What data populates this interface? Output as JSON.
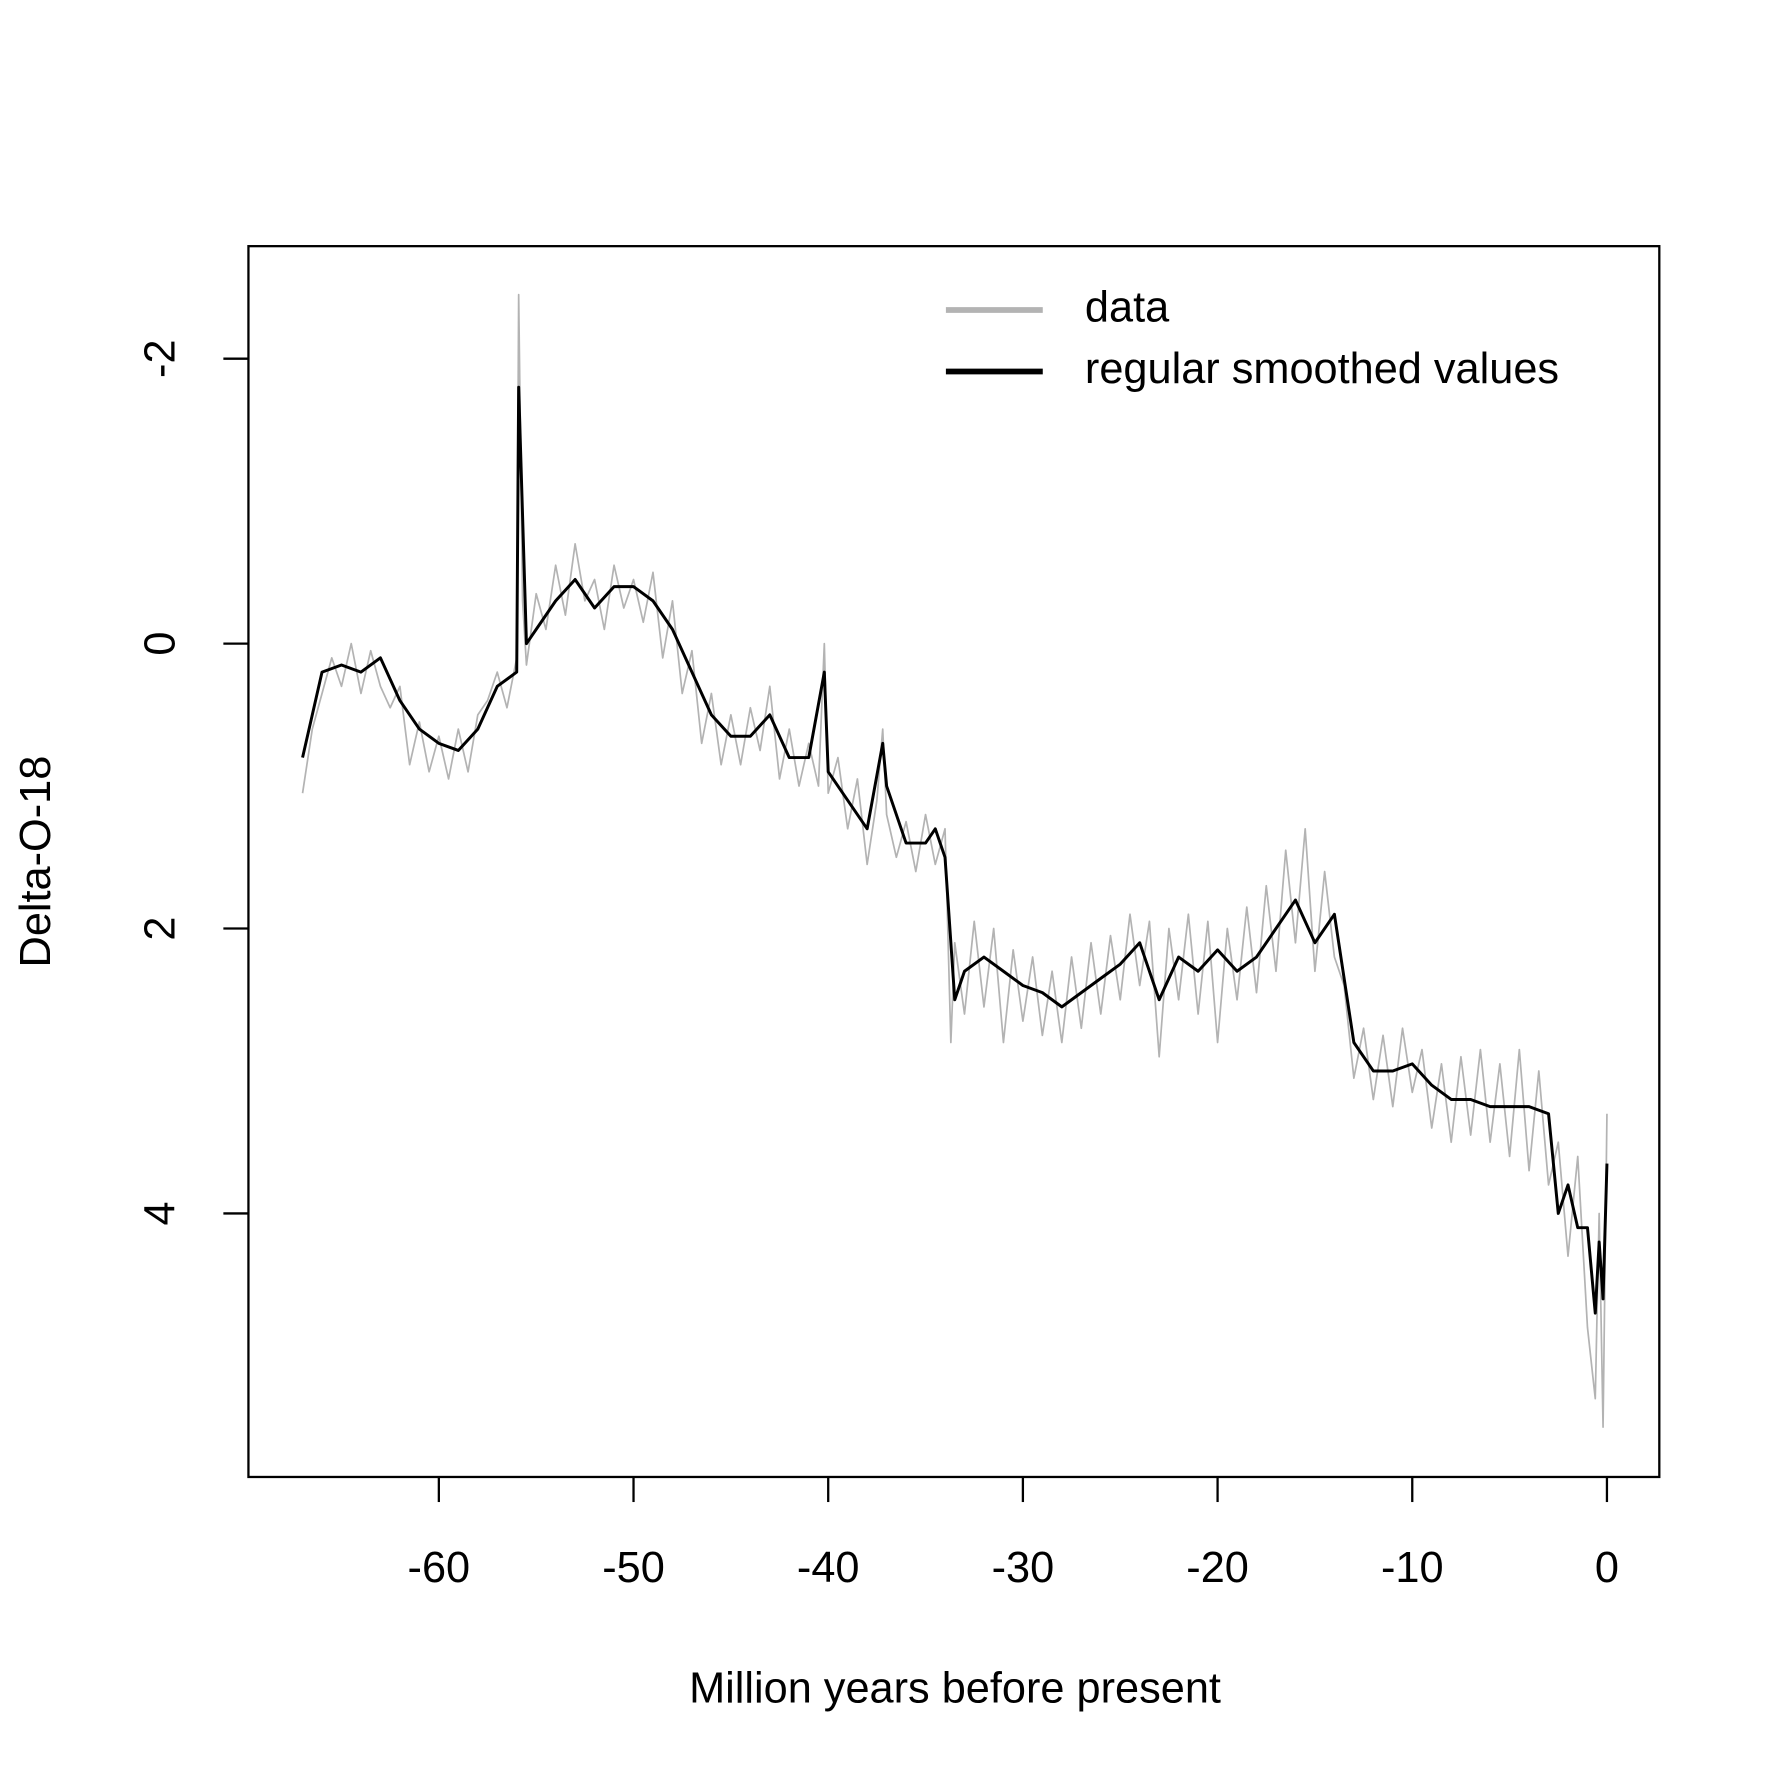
{
  "chart_data": {
    "type": "line",
    "xlabel": "Million years before present",
    "ylabel": "Delta-O-18",
    "xlim": [
      -69.78,
      2.69
    ],
    "ylim": [
      5.85,
      -2.79
    ],
    "xticks": [
      -60,
      -50,
      -40,
      -30,
      -20,
      -10,
      0
    ],
    "yticks": [
      -2,
      0,
      2,
      4
    ],
    "legend": "top-right",
    "series": [
      {
        "name": "data",
        "color": "#b3b3b3",
        "x": [
          -67,
          -66.5,
          -66,
          -65.5,
          -65,
          -64.5,
          -64,
          -63.5,
          -63,
          -62.5,
          -62,
          -61.5,
          -61,
          -60.5,
          -60,
          -59.5,
          -59,
          -58.5,
          -58,
          -57.5,
          -57,
          -56.5,
          -56,
          -55.9,
          -55.7,
          -55.5,
          -55,
          -54.5,
          -54,
          -53.5,
          -53,
          -52.5,
          -52,
          -51.5,
          -51,
          -50.5,
          -50,
          -49.5,
          -49,
          -48.5,
          -48,
          -47.5,
          -47,
          -46.5,
          -46,
          -45.5,
          -45,
          -44.5,
          -44,
          -43.5,
          -43,
          -42.5,
          -42,
          -41.5,
          -41,
          -40.5,
          -40.2,
          -40,
          -39.5,
          -39,
          -38.5,
          -38,
          -37.5,
          -37.2,
          -37,
          -36.5,
          -36,
          -35.5,
          -35,
          -34.5,
          -34,
          -33.7,
          -33.5,
          -33,
          -32.5,
          -32,
          -31.5,
          -31,
          -30.5,
          -30,
          -29.5,
          -29,
          -28.5,
          -28,
          -27.5,
          -27,
          -26.5,
          -26,
          -25.5,
          -25,
          -24.5,
          -24,
          -23.5,
          -23,
          -22.5,
          -22,
          -21.5,
          -21,
          -20.5,
          -20,
          -19.5,
          -19,
          -18.5,
          -18,
          -17.5,
          -17,
          -16.5,
          -16,
          -15.5,
          -15,
          -14.5,
          -14,
          -13.5,
          -13,
          -12.5,
          -12,
          -11.5,
          -11,
          -10.5,
          -10,
          -9.5,
          -9,
          -8.5,
          -8,
          -7.5,
          -7,
          -6.5,
          -6,
          -5.5,
          -5,
          -4.5,
          -4,
          -3.5,
          -3,
          -2.5,
          -2,
          -1.5,
          -1,
          -0.6,
          -0.4,
          -0.2,
          0
        ],
        "values": [
          1.05,
          0.6,
          0.35,
          0.1,
          0.3,
          0.0,
          0.35,
          0.05,
          0.3,
          0.45,
          0.3,
          0.85,
          0.55,
          0.9,
          0.65,
          0.95,
          0.6,
          0.9,
          0.5,
          0.4,
          0.2,
          0.45,
          0.1,
          -2.45,
          -0.3,
          0.15,
          -0.35,
          -0.1,
          -0.55,
          -0.2,
          -0.7,
          -0.3,
          -0.45,
          -0.1,
          -0.55,
          -0.25,
          -0.45,
          -0.15,
          -0.5,
          0.1,
          -0.3,
          0.35,
          0.05,
          0.7,
          0.35,
          0.85,
          0.5,
          0.85,
          0.45,
          0.75,
          0.3,
          0.95,
          0.6,
          1.0,
          0.7,
          1.0,
          0.0,
          1.05,
          0.8,
          1.3,
          0.95,
          1.55,
          1.1,
          0.6,
          1.2,
          1.5,
          1.25,
          1.6,
          1.2,
          1.55,
          1.3,
          2.8,
          2.1,
          2.6,
          1.95,
          2.55,
          2.0,
          2.8,
          2.15,
          2.65,
          2.2,
          2.75,
          2.3,
          2.8,
          2.2,
          2.7,
          2.1,
          2.6,
          2.05,
          2.5,
          1.9,
          2.4,
          1.95,
          2.9,
          2.0,
          2.5,
          1.9,
          2.6,
          1.95,
          2.8,
          2.0,
          2.5,
          1.85,
          2.45,
          1.7,
          2.3,
          1.45,
          2.1,
          1.3,
          2.3,
          1.6,
          2.2,
          2.4,
          3.05,
          2.7,
          3.2,
          2.75,
          3.25,
          2.7,
          3.15,
          2.85,
          3.4,
          2.95,
          3.5,
          2.9,
          3.45,
          2.85,
          3.5,
          2.95,
          3.6,
          2.85,
          3.7,
          3.0,
          3.8,
          3.5,
          4.3,
          3.6,
          4.8,
          5.3,
          4.0,
          5.5,
          3.3
        ]
      },
      {
        "name": "regular smoothed values",
        "color": "#000000",
        "x": [
          -67,
          -66,
          -65,
          -64,
          -63,
          -62,
          -61,
          -60,
          -59,
          -58,
          -57,
          -56,
          -55.9,
          -55.5,
          -55,
          -54,
          -53,
          -52,
          -51,
          -50,
          -49,
          -48,
          -47,
          -46,
          -45,
          -44,
          -43,
          -42,
          -41,
          -40.2,
          -40,
          -39,
          -38,
          -37.2,
          -37,
          -36,
          -35,
          -34.5,
          -34,
          -33.5,
          -33,
          -32,
          -31,
          -30,
          -29,
          -28,
          -27,
          -26,
          -25,
          -24,
          -23,
          -22,
          -21,
          -20,
          -19,
          -18,
          -17,
          -16,
          -15,
          -14,
          -13,
          -12,
          -11,
          -10,
          -9,
          -8,
          -7,
          -6,
          -5,
          -4,
          -3,
          -2.5,
          -2,
          -1.5,
          -1,
          -0.6,
          -0.4,
          -0.2,
          0
        ],
        "values": [
          0.8,
          0.2,
          0.15,
          0.2,
          0.1,
          0.4,
          0.6,
          0.7,
          0.75,
          0.6,
          0.3,
          0.2,
          -1.8,
          0.0,
          -0.1,
          -0.3,
          -0.45,
          -0.25,
          -0.4,
          -0.4,
          -0.3,
          -0.1,
          0.2,
          0.5,
          0.65,
          0.65,
          0.5,
          0.8,
          0.8,
          0.2,
          0.9,
          1.1,
          1.3,
          0.7,
          1.0,
          1.4,
          1.4,
          1.3,
          1.5,
          2.5,
          2.3,
          2.2,
          2.3,
          2.4,
          2.45,
          2.55,
          2.45,
          2.35,
          2.25,
          2.1,
          2.5,
          2.2,
          2.3,
          2.15,
          2.3,
          2.2,
          2.0,
          1.8,
          2.1,
          1.9,
          2.8,
          3.0,
          3.0,
          2.95,
          3.1,
          3.2,
          3.2,
          3.25,
          3.25,
          3.25,
          3.3,
          4.0,
          3.8,
          4.1,
          4.1,
          4.7,
          4.2,
          4.6,
          3.65
        ]
      }
    ]
  }
}
